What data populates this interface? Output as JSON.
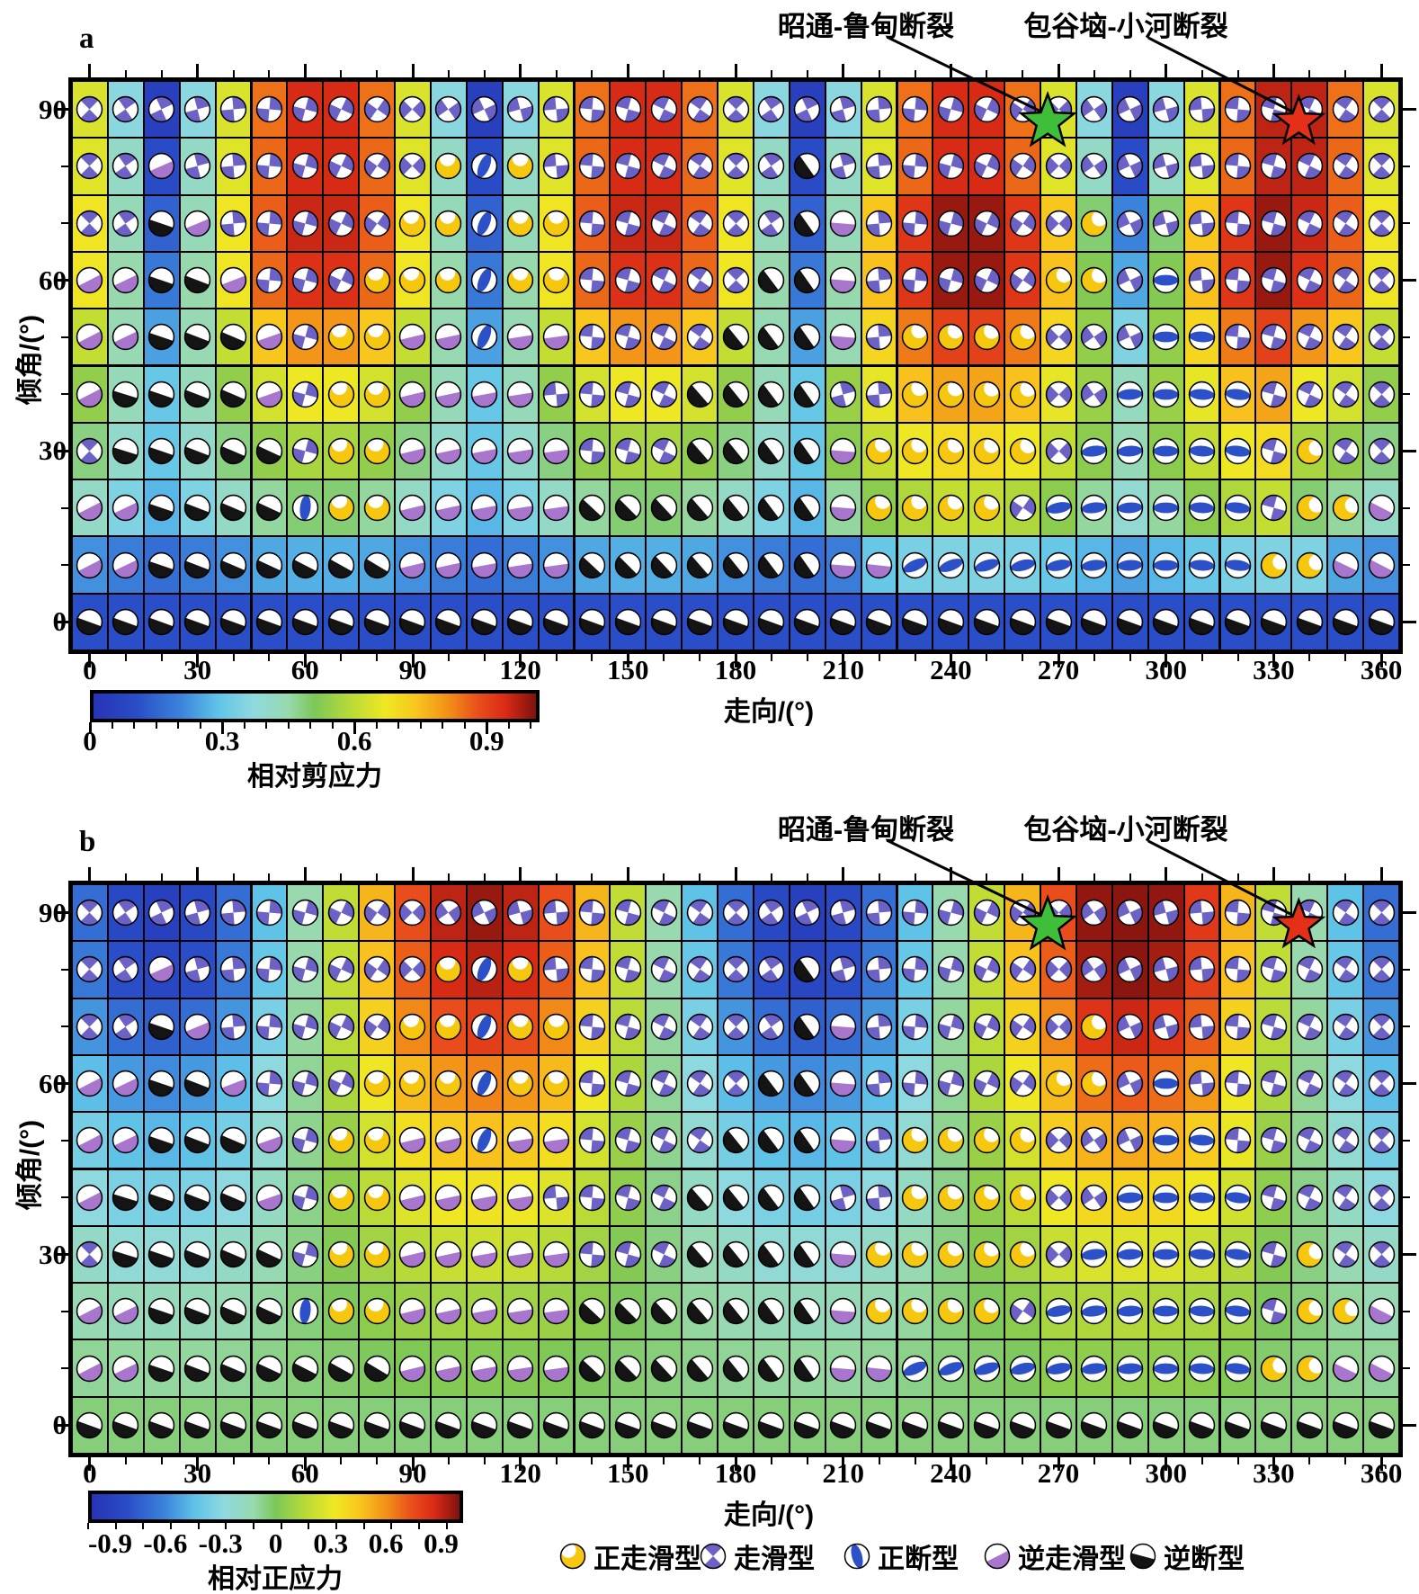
{
  "figure_title": "",
  "type_codes": {
    "S": "走滑型",
    "Y": "正走滑型",
    "N": "正断型",
    "R": "逆走滑型",
    "B": "逆断型"
  },
  "legend": {
    "items": [
      {
        "code": "Y",
        "label": "正走滑型",
        "color": "#f6c70f"
      },
      {
        "code": "S",
        "label": "走滑型",
        "color": "#6c61c5"
      },
      {
        "code": "N",
        "label": "正断型",
        "color": "#2b50c8"
      },
      {
        "code": "R",
        "label": "逆走滑型",
        "color": "#a876cd"
      },
      {
        "code": "B",
        "label": "逆断型",
        "color": "#141414"
      }
    ]
  },
  "colors": {
    "green_star": "#3fbe3a",
    "red_star": "#e53019",
    "ball_strike_slip": "#6c61c5",
    "ball_normal_strike_slip": "#f6c70f",
    "ball_normal": "#2b50c8",
    "ball_reverse_strike_slip": "#a876cd",
    "ball_reverse": "#141414",
    "colormap_stops": [
      [
        0,
        "#2733b5"
      ],
      [
        0.1,
        "#2a4ec8"
      ],
      [
        0.2,
        "#3c85db"
      ],
      [
        0.28,
        "#5fc3e8"
      ],
      [
        0.36,
        "#8fd9df"
      ],
      [
        0.44,
        "#98d9ae"
      ],
      [
        0.5,
        "#7cc757"
      ],
      [
        0.58,
        "#b8da38"
      ],
      [
        0.66,
        "#efe823"
      ],
      [
        0.73,
        "#f8c51d"
      ],
      [
        0.8,
        "#f29117"
      ],
      [
        0.87,
        "#e94e1b"
      ],
      [
        0.93,
        "#da2b16"
      ],
      [
        1,
        "#7d120e"
      ]
    ]
  },
  "chart_data": [
    {
      "type": "heatmap",
      "panel_letter": "a",
      "xlabel": "走向/(°)",
      "ylabel": "倾角/(°)",
      "x_major_tick_labels": [
        "0",
        "30",
        "60",
        "90",
        "120",
        "150",
        "180",
        "210",
        "240",
        "270",
        "300",
        "330",
        "360"
      ],
      "y_major_tick_labels": [
        "90",
        "60",
        "30",
        "0"
      ],
      "x_strike_deg": [
        0,
        10,
        20,
        30,
        40,
        50,
        60,
        70,
        80,
        90,
        100,
        110,
        120,
        130,
        140,
        150,
        160,
        170,
        180,
        190,
        200,
        210,
        220,
        230,
        240,
        250,
        260,
        270,
        280,
        290,
        300,
        310,
        320,
        330,
        340,
        350,
        360
      ],
      "y_dip_deg": [
        90,
        80,
        70,
        60,
        50,
        40,
        30,
        20,
        10,
        0
      ],
      "colorbar": {
        "label": "相对剪应力",
        "tick_labels": [
          "0",
          "0.3",
          "0.6",
          "0.9"
        ],
        "tick_values": [
          0,
          0.3,
          0.6,
          0.9
        ],
        "range": [
          0,
          1.02
        ]
      },
      "annotations": [
        {
          "label": "昭通-鲁甸断裂",
          "marker": "green-star",
          "strike_deg": 267,
          "dip_deg": 88
        },
        {
          "label": "包谷垴-小河断裂",
          "marker": "red-star",
          "strike_deg": 337,
          "dip_deg": 88
        }
      ],
      "values": [
        [
          0.64,
          0.36,
          0.05,
          0.36,
          0.64,
          0.85,
          0.95,
          0.95,
          0.85,
          0.64,
          0.36,
          0.05,
          0.36,
          0.64,
          0.85,
          0.95,
          0.95,
          0.85,
          0.64,
          0.36,
          0.05,
          0.36,
          0.64,
          0.85,
          0.95,
          0.95,
          0.85,
          0.64,
          0.36,
          0.05,
          0.36,
          0.64,
          0.85,
          0.97,
          0.97,
          0.85,
          0.64
        ],
        [
          0.65,
          0.41,
          0.09,
          0.41,
          0.65,
          0.86,
          0.95,
          0.95,
          0.86,
          0.65,
          0.41,
          0.09,
          0.41,
          0.65,
          0.86,
          0.95,
          0.95,
          0.86,
          0.65,
          0.41,
          0.09,
          0.41,
          0.65,
          0.86,
          0.95,
          0.95,
          0.86,
          0.65,
          0.41,
          0.09,
          0.41,
          0.65,
          0.86,
          0.97,
          0.97,
          0.86,
          0.65
        ],
        [
          0.68,
          0.43,
          0.14,
          0.43,
          0.68,
          0.87,
          0.96,
          0.96,
          0.87,
          0.68,
          0.43,
          0.14,
          0.43,
          0.68,
          0.87,
          0.96,
          0.96,
          0.87,
          0.68,
          0.43,
          0.14,
          0.43,
          0.74,
          0.93,
          1.0,
          1.0,
          0.93,
          0.74,
          0.49,
          0.2,
          0.49,
          0.74,
          0.93,
          1.0,
          0.96,
          0.87,
          0.68
        ],
        [
          0.68,
          0.45,
          0.18,
          0.45,
          0.68,
          0.86,
          0.94,
          0.94,
          0.86,
          0.68,
          0.45,
          0.18,
          0.45,
          0.68,
          0.86,
          0.94,
          0.94,
          0.86,
          0.68,
          0.45,
          0.18,
          0.45,
          0.75,
          0.93,
          1.0,
          1.0,
          0.93,
          0.75,
          0.52,
          0.25,
          0.52,
          0.75,
          0.93,
          1.0,
          0.94,
          0.86,
          0.68
        ],
        [
          0.61,
          0.44,
          0.24,
          0.44,
          0.61,
          0.74,
          0.81,
          0.81,
          0.74,
          0.61,
          0.44,
          0.24,
          0.44,
          0.61,
          0.74,
          0.81,
          0.81,
          0.74,
          0.61,
          0.44,
          0.24,
          0.44,
          0.71,
          0.84,
          0.91,
          0.91,
          0.84,
          0.71,
          0.54,
          0.34,
          0.54,
          0.71,
          0.84,
          0.91,
          0.81,
          0.74,
          0.61
        ],
        [
          0.54,
          0.43,
          0.3,
          0.43,
          0.54,
          0.63,
          0.67,
          0.67,
          0.63,
          0.54,
          0.43,
          0.3,
          0.43,
          0.54,
          0.63,
          0.67,
          0.67,
          0.63,
          0.54,
          0.43,
          0.3,
          0.55,
          0.66,
          0.75,
          0.79,
          0.79,
          0.75,
          0.66,
          0.55,
          0.42,
          0.55,
          0.66,
          0.75,
          0.79,
          0.67,
          0.63,
          0.54
        ],
        [
          0.48,
          0.4,
          0.3,
          0.4,
          0.48,
          0.54,
          0.57,
          0.57,
          0.54,
          0.48,
          0.4,
          0.3,
          0.4,
          0.48,
          0.54,
          0.57,
          0.57,
          0.54,
          0.48,
          0.4,
          0.3,
          0.53,
          0.61,
          0.67,
          0.7,
          0.7,
          0.67,
          0.61,
          0.53,
          0.43,
          0.53,
          0.61,
          0.67,
          0.7,
          0.57,
          0.54,
          0.48
        ],
        [
          0.41,
          0.34,
          0.27,
          0.34,
          0.41,
          0.46,
          0.49,
          0.49,
          0.46,
          0.41,
          0.34,
          0.27,
          0.34,
          0.41,
          0.46,
          0.49,
          0.49,
          0.46,
          0.41,
          0.34,
          0.27,
          0.46,
          0.53,
          0.58,
          0.61,
          0.61,
          0.58,
          0.53,
          0.46,
          0.39,
          0.46,
          0.53,
          0.58,
          0.61,
          0.49,
          0.46,
          0.41
        ],
        [
          0.22,
          0.19,
          0.16,
          0.19,
          0.22,
          0.25,
          0.26,
          0.26,
          0.25,
          0.22,
          0.19,
          0.16,
          0.19,
          0.22,
          0.25,
          0.26,
          0.26,
          0.25,
          0.22,
          0.19,
          0.16,
          0.19,
          0.3,
          0.33,
          0.34,
          0.34,
          0.33,
          0.3,
          0.27,
          0.24,
          0.27,
          0.3,
          0.33,
          0.34,
          0.34,
          0.25,
          0.22
        ],
        [
          0.1,
          0.1,
          0.1,
          0.1,
          0.1,
          0.1,
          0.1,
          0.1,
          0.1,
          0.1,
          0.1,
          0.1,
          0.1,
          0.1,
          0.1,
          0.1,
          0.1,
          0.1,
          0.1,
          0.1,
          0.1,
          0.1,
          0.1,
          0.1,
          0.1,
          0.1,
          0.1,
          0.1,
          0.1,
          0.1,
          0.1,
          0.1,
          0.1,
          0.1,
          0.1,
          0.1,
          0.1
        ]
      ],
      "mechanism_types": [
        "SSSSSSSSSSSSSSSSSSSSSSSSSSSSSSSSSSSSS",
        "SSRSSSSSSSYNYSSSSSSSBSSSSSSSSSSSSSSSS",
        "SSBRSSSSSYYNYYSSSSSSBRSSSSSSYSSSSSSSS",
        "RRBBRSSSYYYNYYSSSSSBBRSSSSSYYSNSSSSSS",
        "RRBBBRSYYRRNRRSSSSBBBRSYYYYSSSNNSSSSS",
        "RBBBBRSYYRRRRSSSSBBBBSSYYYYSSNNNNSSSS",
        "SBBBBBSYYRRRRRSSSBBBBRYYYYYSNNNNNSYSS",
        "RRBBBBNYYRRRRRBBBBBBBRYYYYSNNNNNNSYYR",
        "RRBBBBBBBRRRRRBBBBBBBRRNNNNNNNNNNYYRR",
        "BBBBBBBBBBBBBBBBBBBBBBBBBBBBBBBBBBBBB"
      ]
    },
    {
      "type": "heatmap",
      "panel_letter": "b",
      "xlabel": "走向/(°)",
      "ylabel": "倾角/(°)",
      "x_major_tick_labels": [
        "0",
        "30",
        "60",
        "90",
        "120",
        "150",
        "180",
        "210",
        "240",
        "270",
        "300",
        "330",
        "360"
      ],
      "y_major_tick_labels": [
        "90",
        "60",
        "30",
        "0"
      ],
      "x_strike_deg": [
        0,
        10,
        20,
        30,
        40,
        50,
        60,
        70,
        80,
        90,
        100,
        110,
        120,
        130,
        140,
        150,
        160,
        170,
        180,
        190,
        200,
        210,
        220,
        230,
        240,
        250,
        260,
        270,
        280,
        290,
        300,
        310,
        320,
        330,
        340,
        350,
        360
      ],
      "y_dip_deg": [
        90,
        80,
        70,
        60,
        50,
        40,
        30,
        20,
        10,
        0
      ],
      "colorbar": {
        "label": "相对正应力",
        "tick_labels": [
          "-0.9",
          "-0.6",
          "-0.3",
          "0",
          "0.3",
          "0.6",
          "0.9"
        ],
        "tick_values": [
          -0.9,
          -0.6,
          -0.3,
          0,
          0.3,
          0.6,
          0.9
        ],
        "range": [
          -1.02,
          1.02
        ]
      },
      "annotations": [
        {
          "label": "昭通-鲁甸断裂",
          "marker": "green-star",
          "strike_deg": 267,
          "dip_deg": 88
        },
        {
          "label": "包谷垴-小河断裂",
          "marker": "red-star",
          "strike_deg": 337,
          "dip_deg": 88
        }
      ],
      "values": [
        [
          -0.7,
          -0.86,
          -0.92,
          -0.86,
          -0.7,
          -0.45,
          -0.13,
          0.19,
          0.51,
          0.76,
          0.92,
          0.98,
          0.92,
          0.76,
          0.51,
          0.19,
          -0.13,
          -0.45,
          -0.7,
          -0.86,
          -0.92,
          -0.86,
          -0.7,
          -0.45,
          -0.13,
          0.19,
          0.51,
          0.76,
          0.99,
          1.0,
          0.99,
          0.83,
          0.51,
          0.19,
          -0.13,
          -0.45,
          -0.7
        ],
        [
          -0.66,
          -0.82,
          -0.87,
          -0.82,
          -0.66,
          -0.42,
          -0.12,
          0.19,
          0.48,
          0.72,
          0.88,
          0.93,
          0.88,
          0.72,
          0.48,
          0.19,
          -0.12,
          -0.42,
          -0.66,
          -0.82,
          -0.87,
          -0.82,
          -0.66,
          -0.42,
          -0.12,
          0.19,
          0.48,
          0.72,
          0.96,
          1.0,
          0.96,
          0.8,
          0.48,
          0.19,
          -0.12,
          -0.42,
          -0.66
        ],
        [
          -0.57,
          -0.7,
          -0.75,
          -0.7,
          -0.57,
          -0.36,
          -0.1,
          0.17,
          0.42,
          0.63,
          0.76,
          0.81,
          0.76,
          0.63,
          0.42,
          0.17,
          -0.1,
          -0.36,
          -0.57,
          -0.7,
          -0.75,
          -0.7,
          -0.57,
          -0.36,
          -0.1,
          0.17,
          0.42,
          0.63,
          0.85,
          0.9,
          0.85,
          0.72,
          0.42,
          0.17,
          -0.1,
          -0.36,
          -0.57
        ],
        [
          -0.46,
          -0.56,
          -0.6,
          -0.56,
          -0.46,
          -0.29,
          -0.09,
          0.13,
          0.33,
          0.5,
          0.6,
          0.64,
          0.6,
          0.5,
          0.33,
          0.13,
          -0.09,
          -0.29,
          -0.46,
          -0.56,
          -0.6,
          -0.56,
          -0.46,
          -0.29,
          -0.09,
          0.13,
          0.33,
          0.5,
          0.69,
          0.73,
          0.69,
          0.59,
          0.33,
          0.13,
          -0.09,
          -0.29,
          -0.46
        ],
        [
          -0.37,
          -0.45,
          -0.48,
          -0.45,
          -0.37,
          -0.24,
          -0.08,
          0.08,
          0.24,
          0.37,
          0.45,
          0.48,
          0.45,
          0.37,
          0.24,
          0.08,
          -0.08,
          -0.24,
          -0.37,
          -0.45,
          -0.48,
          -0.45,
          -0.37,
          -0.24,
          -0.08,
          0.08,
          0.24,
          0.44,
          0.52,
          0.55,
          0.52,
          0.44,
          0.31,
          0.08,
          -0.08,
          -0.24,
          -0.37
        ],
        [
          -0.29,
          -0.35,
          -0.37,
          -0.35,
          -0.29,
          -0.19,
          -0.07,
          0.05,
          0.17,
          0.27,
          0.33,
          0.35,
          0.33,
          0.27,
          0.17,
          0.05,
          -0.07,
          -0.19,
          -0.29,
          -0.35,
          -0.37,
          -0.35,
          -0.29,
          -0.19,
          -0.07,
          0.05,
          0.17,
          0.33,
          0.39,
          0.41,
          0.39,
          0.33,
          0.23,
          0.05,
          -0.07,
          -0.19,
          -0.29
        ],
        [
          -0.2,
          -0.25,
          -0.26,
          -0.25,
          -0.2,
          -0.14,
          -0.06,
          0.02,
          0.1,
          0.16,
          0.21,
          0.22,
          0.21,
          0.16,
          0.1,
          0.02,
          -0.06,
          -0.14,
          -0.2,
          -0.25,
          -0.26,
          -0.25,
          -0.2,
          -0.14,
          -0.06,
          0.02,
          0.1,
          0.21,
          0.26,
          0.27,
          0.26,
          0.21,
          0.15,
          0.02,
          -0.06,
          -0.14,
          -0.2
        ],
        [
          -0.14,
          -0.16,
          -0.17,
          -0.16,
          -0.14,
          -0.1,
          -0.05,
          -0.01,
          0.04,
          0.08,
          0.1,
          0.11,
          0.1,
          0.08,
          0.04,
          -0.01,
          -0.05,
          -0.1,
          -0.14,
          -0.16,
          -0.17,
          -0.16,
          -0.14,
          -0.1,
          -0.05,
          -0.01,
          0.04,
          0.12,
          0.14,
          0.15,
          0.14,
          0.12,
          0.08,
          -0.01,
          -0.05,
          -0.1,
          -0.14
        ],
        [
          -0.09,
          -0.1,
          -0.1,
          -0.1,
          -0.09,
          -0.07,
          -0.05,
          -0.03,
          -0.01,
          0.01,
          0.02,
          0.02,
          0.02,
          0.01,
          -0.01,
          -0.03,
          -0.05,
          -0.07,
          -0.09,
          -0.1,
          -0.1,
          -0.1,
          -0.09,
          -0.07,
          -0.05,
          -0.03,
          -0.01,
          0.04,
          0.05,
          0.05,
          0.05,
          0.04,
          0.02,
          -0.03,
          -0.05,
          -0.07,
          -0.09
        ],
        [
          -0.05,
          -0.05,
          -0.05,
          -0.05,
          -0.05,
          -0.05,
          -0.05,
          -0.05,
          -0.05,
          -0.05,
          -0.05,
          -0.05,
          -0.05,
          -0.05,
          -0.05,
          -0.05,
          -0.05,
          -0.05,
          -0.05,
          -0.05,
          -0.05,
          -0.05,
          -0.05,
          -0.05,
          -0.05,
          -0.05,
          -0.05,
          -0.05,
          -0.05,
          -0.05,
          -0.05,
          -0.05,
          -0.05,
          -0.05,
          -0.05,
          -0.05,
          -0.05
        ]
      ],
      "mechanism_types": [
        "SSSSSSSSSSSSSSSSSSSSSSSSSSSSSSSSSSSSS",
        "SSRSSSSSSSYNYSSSSSSSBSSSSSSSSSSSSSSSS",
        "SSBRSSSSSYYNYYSSSSSSBRSSSSSSYSSSSSSSS",
        "RRBBRSSSYYYNYYSSSSSBBRSSSSSYYSNSSSSSS",
        "RRBBBRSYYRRNRRSSSSBBBRSYYYYSSSNNSSSSS",
        "RBBBBRSYYRRRRSSSSBBBBSSYYYYSSNNNNSSSS",
        "SBBBBBSYYRRRRRSSSBBBBRYYYYYSNNNNNSYSS",
        "RRBBBBNYYRRRRRBBBBBBBRYYYYSNNNNNNSYYR",
        "RRBBBBBBBRRRRRBBBBBBBRRNNNNNNNNNNYYRR",
        "BBBBBBBBBBBBBBBBBBBBBBBBBBBBBBBBBBBBB"
      ]
    }
  ]
}
